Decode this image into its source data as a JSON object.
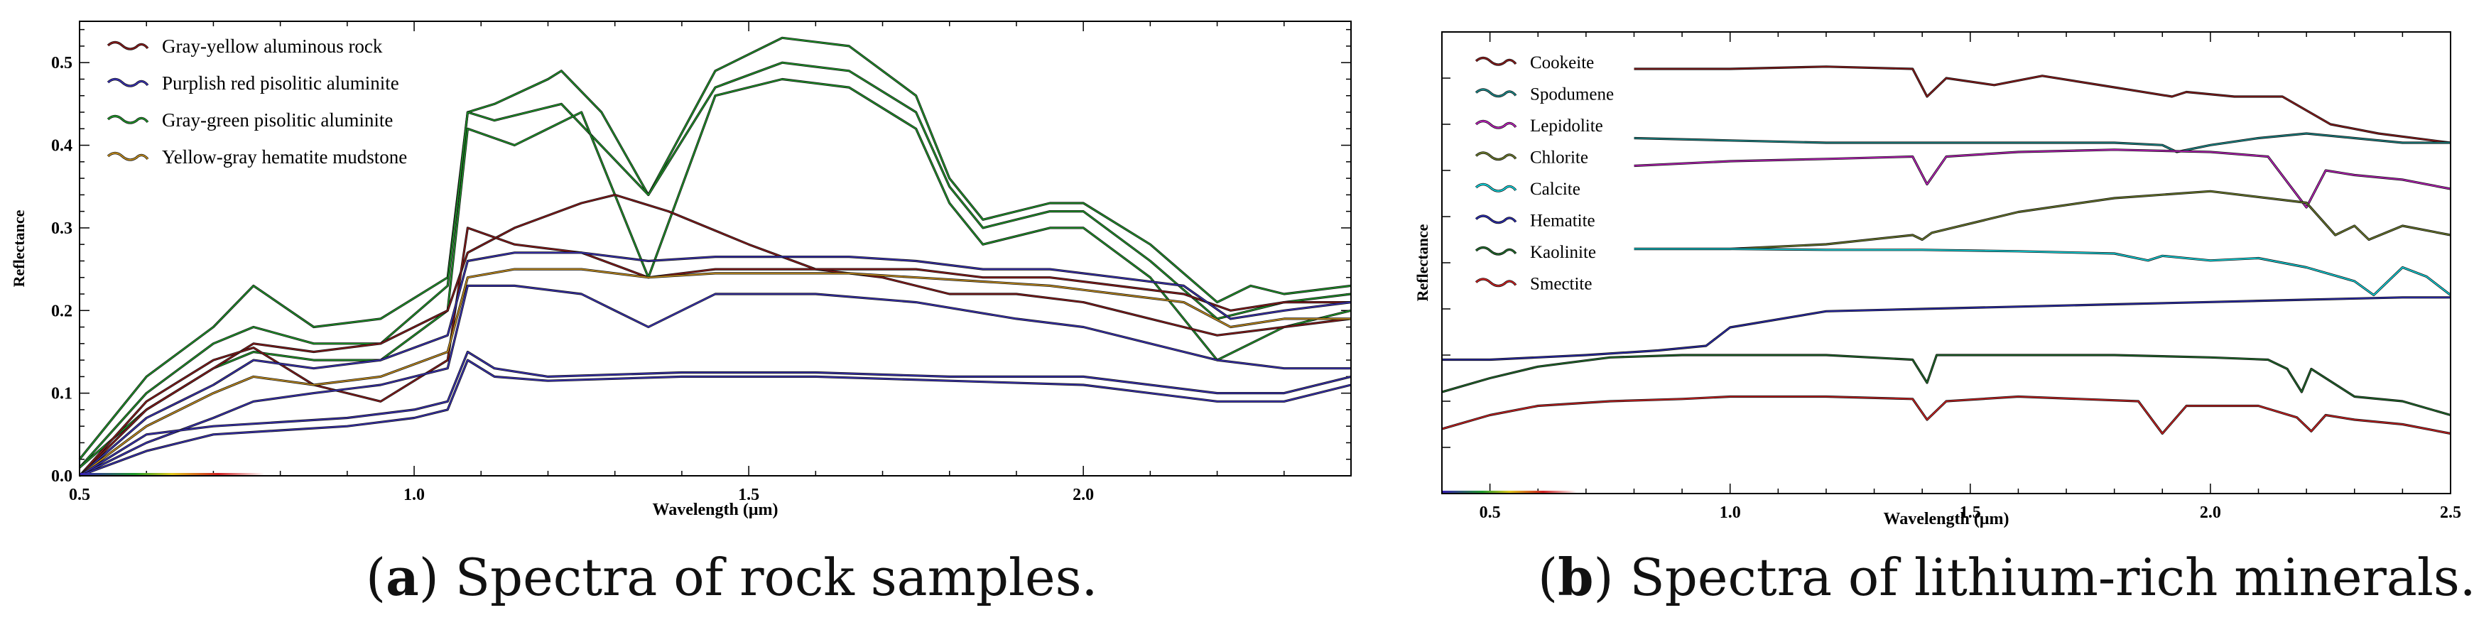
{
  "captions": {
    "a_letter": "a",
    "a_text": "Spectra of rock samples.",
    "b_letter": "b",
    "b_text": "Spectra of lithium-rich minerals."
  },
  "chart_data": [
    {
      "type": "line",
      "panel": "a",
      "title": "",
      "xlabel": "Wavelength (μm)",
      "ylabel": "Reflectance",
      "xlim": [
        0.5,
        2.4
      ],
      "ylim": [
        0.0,
        0.55
      ],
      "xticks": [
        0.5,
        1.0,
        1.5,
        2.0
      ],
      "xtick_labels": [
        "0.5",
        "1.0",
        "1.5",
        "2.0"
      ],
      "yticks": [
        0.0,
        0.1,
        0.2,
        0.3,
        0.4,
        0.5
      ],
      "ytick_labels": [
        "0.0",
        "0.1",
        "0.2",
        "0.3",
        "0.4",
        "0.5"
      ],
      "legend_position": "top-left",
      "legend": [
        {
          "name": "Gray-yellow aluminous rock",
          "color": "#8b1a1a"
        },
        {
          "name": "Purplish red pisolitic aluminite",
          "color": "#3a32b8"
        },
        {
          "name": "Gray-green pisolitic aluminite",
          "color": "#1f9a2a"
        },
        {
          "name": "Yellow-gray hematite mudstone",
          "color": "#c8901e"
        }
      ],
      "series": [
        {
          "name": "Gray-green pisolitic aluminite (1)",
          "color": "#1f9a2a",
          "x": [
            0.5,
            0.6,
            0.7,
            0.76,
            0.85,
            0.95,
            1.05,
            1.08,
            1.12,
            1.2,
            1.22,
            1.28,
            1.35,
            1.45,
            1.55,
            1.65,
            1.75,
            1.8,
            1.85,
            1.95,
            2.0,
            2.1,
            2.2,
            2.25,
            2.3,
            2.4
          ],
          "y": [
            0.02,
            0.12,
            0.18,
            0.23,
            0.18,
            0.19,
            0.24,
            0.44,
            0.45,
            0.48,
            0.49,
            0.44,
            0.34,
            0.49,
            0.53,
            0.52,
            0.46,
            0.36,
            0.31,
            0.33,
            0.33,
            0.28,
            0.21,
            0.23,
            0.22,
            0.23
          ]
        },
        {
          "name": "Gray-green pisolitic aluminite (2)",
          "color": "#1f9a2a",
          "x": [
            0.5,
            0.6,
            0.7,
            0.76,
            0.85,
            0.95,
            1.05,
            1.08,
            1.12,
            1.22,
            1.35,
            1.45,
            1.55,
            1.65,
            1.75,
            1.8,
            1.85,
            1.95,
            2.0,
            2.1,
            2.2,
            2.3,
            2.4
          ],
          "y": [
            0.01,
            0.1,
            0.16,
            0.18,
            0.16,
            0.16,
            0.23,
            0.44,
            0.43,
            0.45,
            0.34,
            0.47,
            0.5,
            0.49,
            0.44,
            0.35,
            0.3,
            0.32,
            0.32,
            0.26,
            0.19,
            0.21,
            0.22
          ]
        },
        {
          "name": "Gray-green pisolitic aluminite (3)",
          "color": "#1f9a2a",
          "x": [
            0.5,
            0.6,
            0.7,
            0.76,
            0.85,
            0.95,
            1.05,
            1.08,
            1.15,
            1.25,
            1.35,
            1.45,
            1.55,
            1.65,
            1.75,
            1.8,
            1.85,
            1.95,
            2.0,
            2.1,
            2.2,
            2.3,
            2.4
          ],
          "y": [
            0.01,
            0.08,
            0.13,
            0.15,
            0.14,
            0.14,
            0.2,
            0.42,
            0.4,
            0.44,
            0.24,
            0.46,
            0.48,
            0.47,
            0.42,
            0.33,
            0.28,
            0.3,
            0.3,
            0.24,
            0.14,
            0.18,
            0.2
          ]
        },
        {
          "name": "Gray-yellow aluminous rock (1)",
          "color": "#8b1a1a",
          "x": [
            0.5,
            0.6,
            0.7,
            0.76,
            0.85,
            0.95,
            1.05,
            1.08,
            1.15,
            1.25,
            1.3,
            1.38,
            1.5,
            1.6,
            1.7,
            1.8,
            1.9,
            2.0,
            2.1,
            2.2,
            2.3,
            2.4
          ],
          "y": [
            0.0,
            0.08,
            0.13,
            0.16,
            0.15,
            0.16,
            0.2,
            0.27,
            0.3,
            0.33,
            0.34,
            0.32,
            0.28,
            0.25,
            0.24,
            0.22,
            0.22,
            0.21,
            0.19,
            0.17,
            0.18,
            0.19
          ]
        },
        {
          "name": "Gray-yellow aluminous rock (2)",
          "color": "#8b1a1a",
          "x": [
            0.5,
            0.6,
            0.7,
            0.76,
            0.85,
            0.95,
            1.05,
            1.08,
            1.15,
            1.25,
            1.35,
            1.45,
            1.55,
            1.65,
            1.75,
            1.85,
            1.95,
            2.05,
            2.15,
            2.22,
            2.3,
            2.4
          ],
          "y": [
            0.0,
            0.09,
            0.14,
            0.155,
            0.11,
            0.09,
            0.14,
            0.3,
            0.28,
            0.27,
            0.24,
            0.25,
            0.25,
            0.25,
            0.25,
            0.24,
            0.24,
            0.23,
            0.22,
            0.2,
            0.21,
            0.21
          ]
        },
        {
          "name": "Purplish red pisolitic aluminite (1)",
          "color": "#3a32b8",
          "x": [
            0.5,
            0.6,
            0.7,
            0.76,
            0.85,
            0.95,
            1.05,
            1.08,
            1.15,
            1.25,
            1.35,
            1.45,
            1.55,
            1.65,
            1.75,
            1.85,
            1.95,
            2.05,
            2.15,
            2.22,
            2.3,
            2.4
          ],
          "y": [
            0.0,
            0.07,
            0.11,
            0.14,
            0.13,
            0.14,
            0.17,
            0.26,
            0.27,
            0.27,
            0.26,
            0.265,
            0.265,
            0.265,
            0.26,
            0.25,
            0.25,
            0.24,
            0.23,
            0.19,
            0.2,
            0.21
          ]
        },
        {
          "name": "Yellow-gray hematite mudstone (1)",
          "color": "#c8901e",
          "x": [
            0.5,
            0.6,
            0.7,
            0.76,
            0.85,
            0.95,
            1.05,
            1.08,
            1.15,
            1.25,
            1.35,
            1.45,
            1.55,
            1.65,
            1.75,
            1.85,
            1.95,
            2.05,
            2.15,
            2.22,
            2.3,
            2.4
          ],
          "y": [
            0.0,
            0.06,
            0.1,
            0.12,
            0.11,
            0.12,
            0.15,
            0.24,
            0.25,
            0.25,
            0.24,
            0.245,
            0.245,
            0.245,
            0.24,
            0.235,
            0.23,
            0.22,
            0.21,
            0.18,
            0.19,
            0.19
          ]
        },
        {
          "name": "Purplish red pisolitic aluminite (2)",
          "color": "#3a32b8",
          "x": [
            0.5,
            0.6,
            0.7,
            0.76,
            0.85,
            0.95,
            1.05,
            1.08,
            1.15,
            1.25,
            1.3,
            1.35,
            1.45,
            1.6,
            1.75,
            1.9,
            2.0,
            2.1,
            2.2,
            2.3,
            2.4
          ],
          "y": [
            0.0,
            0.04,
            0.07,
            0.09,
            0.1,
            0.11,
            0.13,
            0.23,
            0.23,
            0.22,
            0.2,
            0.18,
            0.22,
            0.22,
            0.21,
            0.19,
            0.18,
            0.16,
            0.14,
            0.13,
            0.13
          ]
        },
        {
          "name": "Purplish red pisolitic aluminite (3)",
          "color": "#3a32b8",
          "x": [
            0.5,
            0.6,
            0.7,
            0.8,
            0.9,
            1.0,
            1.05,
            1.08,
            1.12,
            1.2,
            1.4,
            1.6,
            1.8,
            2.0,
            2.2,
            2.3,
            2.4
          ],
          "y": [
            0.0,
            0.05,
            0.06,
            0.065,
            0.07,
            0.08,
            0.09,
            0.15,
            0.13,
            0.12,
            0.125,
            0.125,
            0.12,
            0.12,
            0.1,
            0.1,
            0.12
          ]
        },
        {
          "name": "Purplish red pisolitic aluminite (4)",
          "color": "#3a32b8",
          "x": [
            0.5,
            0.6,
            0.7,
            0.8,
            0.9,
            1.0,
            1.05,
            1.08,
            1.12,
            1.2,
            1.4,
            1.6,
            1.8,
            2.0,
            2.2,
            2.3,
            2.4
          ],
          "y": [
            0.0,
            0.03,
            0.05,
            0.055,
            0.06,
            0.07,
            0.08,
            0.14,
            0.12,
            0.115,
            0.12,
            0.12,
            0.115,
            0.11,
            0.09,
            0.09,
            0.11
          ]
        }
      ]
    },
    {
      "type": "line",
      "panel": "b",
      "title": "",
      "xlabel": "Wavelength (μm)",
      "ylabel": "Reflectance",
      "xlim": [
        0.4,
        2.5
      ],
      "ylim": [
        0.0,
        1.0
      ],
      "yticks_unlabeled": true,
      "xticks": [
        0.5,
        1.0,
        1.5,
        2.0,
        2.5
      ],
      "xtick_labels": [
        "0.5",
        "1.0",
        "1.5",
        "2.0",
        "2.5"
      ],
      "legend_position": "top-left",
      "legend": [
        {
          "name": "Cookeite",
          "color": "#8b1a1a"
        },
        {
          "name": "Spodumene",
          "color": "#1a8a8a"
        },
        {
          "name": "Lepidolite",
          "color": "#c020c0"
        },
        {
          "name": "Chlorite",
          "color": "#6b7a2a"
        },
        {
          "name": "Calcite",
          "color": "#10d8e0"
        },
        {
          "name": "Hematite",
          "color": "#2a2ab0"
        },
        {
          "name": "Kaolinite",
          "color": "#1f6b2a"
        },
        {
          "name": "Smectite",
          "color": "#d02020"
        }
      ],
      "series": [
        {
          "name": "Cookeite",
          "color": "#8b1a1a",
          "x": [
            0.8,
            1.0,
            1.2,
            1.38,
            1.41,
            1.45,
            1.55,
            1.65,
            1.8,
            1.92,
            1.95,
            2.05,
            2.15,
            2.25,
            2.35,
            2.5
          ],
          "y": [
            0.92,
            0.92,
            0.925,
            0.92,
            0.86,
            0.9,
            0.885,
            0.905,
            0.88,
            0.86,
            0.87,
            0.86,
            0.86,
            0.8,
            0.78,
            0.76
          ]
        },
        {
          "name": "Spodumene",
          "color": "#1a8a8a",
          "x": [
            0.8,
            1.0,
            1.2,
            1.4,
            1.6,
            1.8,
            1.9,
            1.93,
            2.0,
            2.1,
            2.2,
            2.3,
            2.4,
            2.5
          ],
          "y": [
            0.77,
            0.765,
            0.76,
            0.76,
            0.76,
            0.76,
            0.755,
            0.74,
            0.755,
            0.77,
            0.78,
            0.77,
            0.76,
            0.76
          ]
        },
        {
          "name": "Lepidolite",
          "color": "#c020c0",
          "x": [
            0.8,
            1.0,
            1.2,
            1.38,
            1.41,
            1.45,
            1.6,
            1.8,
            2.0,
            2.12,
            2.2,
            2.24,
            2.3,
            2.4,
            2.5
          ],
          "y": [
            0.71,
            0.72,
            0.725,
            0.73,
            0.67,
            0.73,
            0.74,
            0.745,
            0.74,
            0.73,
            0.62,
            0.7,
            0.69,
            0.68,
            0.66
          ]
        },
        {
          "name": "Chlorite",
          "color": "#6b7a2a",
          "x": [
            0.8,
            1.0,
            1.2,
            1.38,
            1.4,
            1.42,
            1.6,
            1.8,
            2.0,
            2.2,
            2.26,
            2.3,
            2.33,
            2.4,
            2.5
          ],
          "y": [
            0.53,
            0.53,
            0.54,
            0.56,
            0.55,
            0.565,
            0.61,
            0.64,
            0.655,
            0.63,
            0.56,
            0.58,
            0.55,
            0.58,
            0.56
          ]
        },
        {
          "name": "Calcite",
          "color": "#10d8e0",
          "x": [
            0.8,
            1.0,
            1.2,
            1.4,
            1.6,
            1.8,
            1.87,
            1.9,
            2.0,
            2.1,
            2.2,
            2.3,
            2.34,
            2.4,
            2.45,
            2.5
          ],
          "y": [
            0.53,
            0.53,
            0.528,
            0.528,
            0.525,
            0.52,
            0.505,
            0.515,
            0.505,
            0.51,
            0.49,
            0.46,
            0.43,
            0.49,
            0.47,
            0.43
          ]
        },
        {
          "name": "Hematite",
          "color": "#2a2ab0",
          "x": [
            0.4,
            0.5,
            0.7,
            0.85,
            0.95,
            1.0,
            1.2,
            1.4,
            1.6,
            1.8,
            2.0,
            2.2,
            2.4,
            2.5
          ],
          "y": [
            0.29,
            0.29,
            0.3,
            0.31,
            0.32,
            0.36,
            0.395,
            0.4,
            0.405,
            0.41,
            0.415,
            0.42,
            0.425,
            0.425
          ]
        },
        {
          "name": "Kaolinite",
          "color": "#1f6b2a",
          "x": [
            0.4,
            0.5,
            0.6,
            0.75,
            0.9,
            1.0,
            1.2,
            1.38,
            1.41,
            1.43,
            1.55,
            1.8,
            2.0,
            2.12,
            2.16,
            2.19,
            2.21,
            2.24,
            2.3,
            2.4,
            2.5
          ],
          "y": [
            0.22,
            0.25,
            0.275,
            0.295,
            0.3,
            0.3,
            0.3,
            0.29,
            0.24,
            0.3,
            0.3,
            0.3,
            0.295,
            0.29,
            0.27,
            0.22,
            0.27,
            0.25,
            0.21,
            0.2,
            0.17
          ]
        },
        {
          "name": "Smectite",
          "color": "#d02020",
          "x": [
            0.4,
            0.5,
            0.6,
            0.75,
            0.9,
            1.0,
            1.2,
            1.38,
            1.41,
            1.45,
            1.6,
            1.85,
            1.9,
            1.95,
            2.1,
            2.18,
            2.21,
            2.24,
            2.3,
            2.4,
            2.5
          ],
          "y": [
            0.14,
            0.17,
            0.19,
            0.2,
            0.205,
            0.21,
            0.21,
            0.205,
            0.16,
            0.2,
            0.21,
            0.2,
            0.13,
            0.19,
            0.19,
            0.165,
            0.135,
            0.17,
            0.16,
            0.15,
            0.13
          ]
        }
      ]
    }
  ]
}
